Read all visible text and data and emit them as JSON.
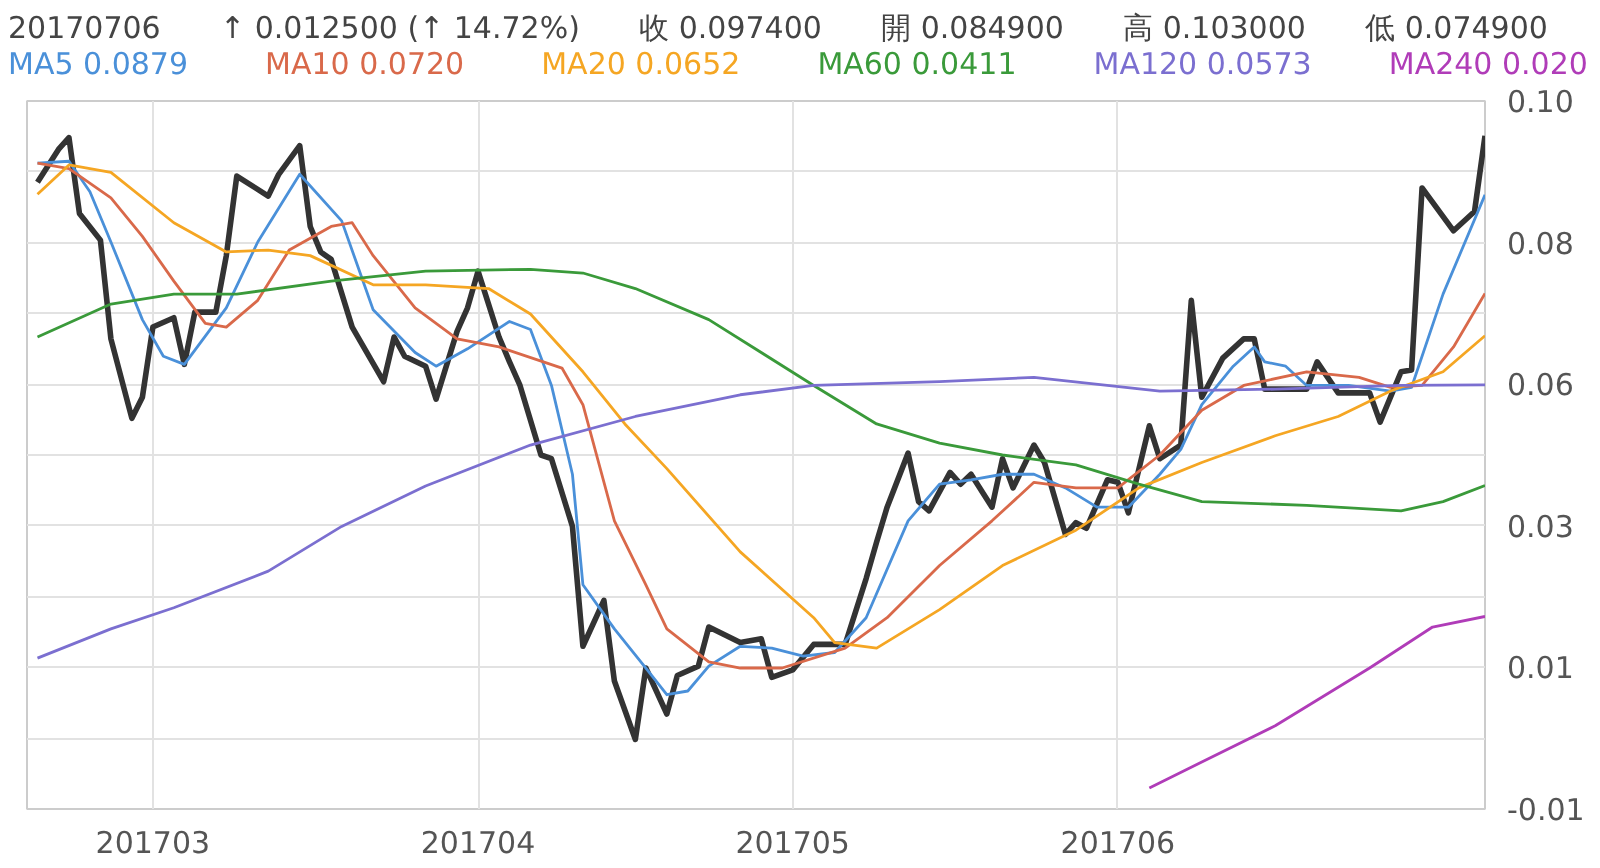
{
  "chart_data": {
    "type": "line",
    "title": "20170706",
    "subtitle": "↑ 0.012500 (↑ 14.72%)",
    "annotations": [
      "收 0.097400",
      "開 0.084900",
      "高 0.103000",
      "低 0.074900"
    ],
    "xlim": [
      "2017-02-17",
      "2017-07-06"
    ],
    "xticks": [
      {
        "value": "2017-03-01",
        "label": "201703"
      },
      {
        "value": "2017-04-01",
        "label": "201704"
      },
      {
        "value": "2017-05-01",
        "label": "201705"
      },
      {
        "value": "2017-06-01",
        "label": "201706"
      }
    ],
    "ylim": [
      -0.011,
      0.103
    ],
    "yticks": [
      {
        "value": 0.103,
        "label": "0.10"
      },
      {
        "value": 0.0916,
        "label": null
      },
      {
        "value": 0.0802,
        "label": "0.08"
      },
      {
        "value": 0.0688,
        "label": null
      },
      {
        "value": 0.0574,
        "label": "0.06"
      },
      {
        "value": 0.046,
        "label": null
      },
      {
        "value": 0.0346,
        "label": "0.03"
      },
      {
        "value": 0.0232,
        "label": null
      },
      {
        "value": 0.0118,
        "label": "0.01"
      },
      {
        "value": 0.0004,
        "label": null
      },
      {
        "value": -0.011,
        "label": "-0.01"
      }
    ],
    "grid": true,
    "legend": "top",
    "line_style": "solid",
    "series": [
      {
        "color": "#333333",
        "x": [
          "2017-02-18",
          "2017-02-20",
          "2017-02-21",
          "2017-02-22",
          "2017-02-24",
          "2017-02-25",
          "2017-02-27",
          "2017-02-28",
          "2017-03-01",
          "2017-03-03",
          "2017-03-04",
          "2017-03-05",
          "2017-03-07",
          "2017-03-08",
          "2017-03-09",
          "2017-03-12",
          "2017-03-13",
          "2017-03-15",
          "2017-03-16",
          "2017-03-17",
          "2017-03-18",
          "2017-03-20",
          "2017-03-23",
          "2017-03-24",
          "2017-03-25",
          "2017-03-27",
          "2017-03-28",
          "2017-03-30",
          "2017-03-31",
          "2017-04-01",
          "2017-04-03",
          "2017-04-04",
          "2017-04-05",
          "2017-04-07",
          "2017-04-08",
          "2017-04-10",
          "2017-04-11",
          "2017-04-13",
          "2017-04-14",
          "2017-04-16",
          "2017-04-17",
          "2017-04-19",
          "2017-04-20",
          "2017-04-22",
          "2017-04-23",
          "2017-04-26",
          "2017-04-28",
          "2017-04-29",
          "2017-05-01",
          "2017-05-03",
          "2017-05-06",
          "2017-05-08",
          "2017-05-09",
          "2017-05-10",
          "2017-05-12",
          "2017-05-13",
          "2017-05-14",
          "2017-05-16",
          "2017-05-17",
          "2017-05-18",
          "2017-05-20",
          "2017-05-21",
          "2017-05-22",
          "2017-05-24",
          "2017-05-25",
          "2017-05-27",
          "2017-05-28",
          "2017-05-29",
          "2017-05-31",
          "2017-06-01",
          "2017-06-02",
          "2017-06-04",
          "2017-06-05",
          "2017-06-07",
          "2017-06-08",
          "2017-06-09",
          "2017-06-11",
          "2017-06-13",
          "2017-06-14",
          "2017-06-15",
          "2017-06-16",
          "2017-06-19",
          "2017-06-20",
          "2017-06-22",
          "2017-06-25",
          "2017-06-26",
          "2017-06-28",
          "2017-06-29",
          "2017-06-30",
          "2017-07-03",
          "2017-07-05",
          "2017-07-06"
        ],
        "values": [
          0.0899,
          0.0952,
          0.0971,
          0.0849,
          0.0806,
          0.0647,
          0.0519,
          0.0553,
          0.0666,
          0.0681,
          0.0606,
          0.069,
          0.069,
          0.0781,
          0.0909,
          0.0877,
          0.0912,
          0.0958,
          0.0828,
          0.0787,
          0.0775,
          0.0666,
          0.0578,
          0.065,
          0.0619,
          0.0603,
          0.055,
          0.0659,
          0.0697,
          0.0756,
          0.065,
          0.061,
          0.0572,
          0.046,
          0.0454,
          0.0345,
          0.0152,
          0.0226,
          0.0096,
          0.0002,
          0.0117,
          0.0043,
          0.0105,
          0.012,
          0.0183,
          0.0158,
          0.0164,
          0.0102,
          0.0114,
          0.0155,
          0.0155,
          0.0261,
          0.032,
          0.0376,
          0.0463,
          0.0385,
          0.037,
          0.0432,
          0.0413,
          0.0429,
          0.0376,
          0.0454,
          0.0407,
          0.0476,
          0.0448,
          0.0332,
          0.0351,
          0.0342,
          0.042,
          0.0416,
          0.0367,
          0.0507,
          0.0454,
          0.0476,
          0.0709,
          0.0553,
          0.0616,
          0.0647,
          0.0647,
          0.0566,
          0.0566,
          0.0566,
          0.061,
          0.056,
          0.056,
          0.0513,
          0.0594,
          0.0597,
          0.089,
          0.0821,
          0.0852,
          0.0974
        ]
      },
      {
        "name": "MA5 0.0879",
        "color": "#4a90d9",
        "x": [
          "2017-02-18",
          "2017-02-21",
          "2017-02-23",
          "2017-02-25",
          "2017-02-28",
          "2017-03-02",
          "2017-03-04",
          "2017-03-08",
          "2017-03-11",
          "2017-03-15",
          "2017-03-19",
          "2017-03-22",
          "2017-03-26",
          "2017-03-28",
          "2017-03-31",
          "2017-04-04",
          "2017-04-06",
          "2017-04-08",
          "2017-04-10",
          "2017-04-11",
          "2017-04-14",
          "2017-04-17",
          "2017-04-19",
          "2017-04-21",
          "2017-04-23",
          "2017-04-26",
          "2017-04-29",
          "2017-05-02",
          "2017-05-05",
          "2017-05-08",
          "2017-05-12",
          "2017-05-15",
          "2017-05-18",
          "2017-05-21",
          "2017-05-24",
          "2017-05-27",
          "2017-05-30",
          "2017-06-02",
          "2017-06-05",
          "2017-06-07",
          "2017-06-09",
          "2017-06-12",
          "2017-06-14",
          "2017-06-15",
          "2017-06-17",
          "2017-06-19",
          "2017-06-23",
          "2017-06-27",
          "2017-06-29",
          "2017-07-02",
          "2017-07-06"
        ],
        "values": [
          0.093,
          0.0933,
          0.0884,
          0.0803,
          0.0678,
          0.0619,
          0.0606,
          0.0697,
          0.0803,
          0.0912,
          0.0837,
          0.0694,
          0.0625,
          0.0603,
          0.0631,
          0.0675,
          0.0662,
          0.0572,
          0.0429,
          0.0251,
          0.018,
          0.0117,
          0.0074,
          0.008,
          0.012,
          0.0152,
          0.0149,
          0.0136,
          0.0142,
          0.0198,
          0.0354,
          0.0413,
          0.042,
          0.0429,
          0.0429,
          0.0407,
          0.0376,
          0.0376,
          0.0429,
          0.0469,
          0.0541,
          0.0603,
          0.0634,
          0.061,
          0.0603,
          0.0572,
          0.0572,
          0.0563,
          0.0569,
          0.0719,
          0.0879
        ]
      },
      {
        "name": "MA10 0.0720",
        "color": "#d9694a",
        "x": [
          "2017-02-18",
          "2017-02-21",
          "2017-02-25",
          "2017-02-28",
          "2017-03-03",
          "2017-03-06",
          "2017-03-08",
          "2017-03-11",
          "2017-03-14",
          "2017-03-18",
          "2017-03-20",
          "2017-03-22",
          "2017-03-26",
          "2017-03-30",
          "2017-04-03",
          "2017-04-09",
          "2017-04-11",
          "2017-04-14",
          "2017-04-17",
          "2017-04-19",
          "2017-04-23",
          "2017-04-26",
          "2017-04-30",
          "2017-05-06",
          "2017-05-10",
          "2017-05-15",
          "2017-05-20",
          "2017-05-24",
          "2017-05-28",
          "2017-06-01",
          "2017-06-05",
          "2017-06-09",
          "2017-06-13",
          "2017-06-19",
          "2017-06-24",
          "2017-06-27",
          "2017-06-30",
          "2017-07-03",
          "2017-07-06"
        ],
        "values": [
          0.093,
          0.0921,
          0.0874,
          0.0812,
          0.074,
          0.0672,
          0.0666,
          0.0709,
          0.079,
          0.0828,
          0.0834,
          0.0781,
          0.0697,
          0.0647,
          0.0634,
          0.06,
          0.0541,
          0.0354,
          0.0251,
          0.018,
          0.0127,
          0.0117,
          0.0117,
          0.0149,
          0.0198,
          0.0282,
          0.0354,
          0.0416,
          0.0407,
          0.0407,
          0.046,
          0.0532,
          0.0572,
          0.0594,
          0.0585,
          0.0569,
          0.0572,
          0.0634,
          0.072
        ]
      },
      {
        "name": "MA20 0.0652",
        "color": "#f5a623",
        "x": [
          "2017-02-18",
          "2017-02-21",
          "2017-02-25",
          "2017-03-03",
          "2017-03-08",
          "2017-03-12",
          "2017-03-16",
          "2017-03-22",
          "2017-03-27",
          "2017-04-02",
          "2017-04-06",
          "2017-04-11",
          "2017-04-15",
          "2017-04-19",
          "2017-04-26",
          "2017-05-03",
          "2017-05-05",
          "2017-05-09",
          "2017-05-15",
          "2017-05-21",
          "2017-05-28",
          "2017-06-03",
          "2017-06-09",
          "2017-06-16",
          "2017-06-22",
          "2017-06-27",
          "2017-07-02",
          "2017-07-06"
        ],
        "values": [
          0.088,
          0.0927,
          0.0915,
          0.0834,
          0.0787,
          0.079,
          0.0781,
          0.0734,
          0.0734,
          0.0728,
          0.0687,
          0.0594,
          0.051,
          0.0438,
          0.0304,
          0.0198,
          0.0158,
          0.0149,
          0.0211,
          0.0282,
          0.0339,
          0.0407,
          0.0448,
          0.0491,
          0.0522,
          0.0563,
          0.0594,
          0.0652
        ]
      },
      {
        "name": "MA60 0.0411",
        "color": "#3a9a3a",
        "x": [
          "2017-02-18",
          "2017-02-25",
          "2017-03-03",
          "2017-03-09",
          "2017-03-18",
          "2017-03-27",
          "2017-04-06",
          "2017-04-11",
          "2017-04-16",
          "2017-04-23",
          "2017-05-03",
          "2017-05-09",
          "2017-05-15",
          "2017-05-21",
          "2017-05-28",
          "2017-06-03",
          "2017-06-09",
          "2017-06-19",
          "2017-06-28",
          "2017-07-02",
          "2017-07-06"
        ],
        "values": [
          0.065,
          0.0703,
          0.0719,
          0.0719,
          0.074,
          0.0756,
          0.0759,
          0.0753,
          0.0728,
          0.0678,
          0.0572,
          0.051,
          0.0479,
          0.046,
          0.0444,
          0.0413,
          0.0385,
          0.0379,
          0.037,
          0.0385,
          0.0411
        ]
      },
      {
        "name": "MA120 0.0573",
        "color": "#7b6fd0",
        "x": [
          "2017-02-18",
          "2017-02-25",
          "2017-03-03",
          "2017-03-12",
          "2017-03-19",
          "2017-03-27",
          "2017-04-06",
          "2017-04-16",
          "2017-04-26",
          "2017-05-03",
          "2017-05-15",
          "2017-05-24",
          "2017-06-05",
          "2017-06-16",
          "2017-06-28",
          "2017-07-06"
        ],
        "values": [
          0.0133,
          0.018,
          0.0214,
          0.0273,
          0.0345,
          0.041,
          0.0476,
          0.0522,
          0.0557,
          0.0572,
          0.0578,
          0.0585,
          0.0563,
          0.0566,
          0.0572,
          0.0573
        ]
      },
      {
        "name": "MA240 0.020",
        "color": "#b03cb8",
        "x": [
          "2017-06-04",
          "2017-06-16",
          "2017-06-25",
          "2017-07-01",
          "2017-07-06"
        ],
        "values": [
          -0.0076,
          0.0024,
          0.0117,
          0.0183,
          0.02
        ]
      }
    ]
  }
}
